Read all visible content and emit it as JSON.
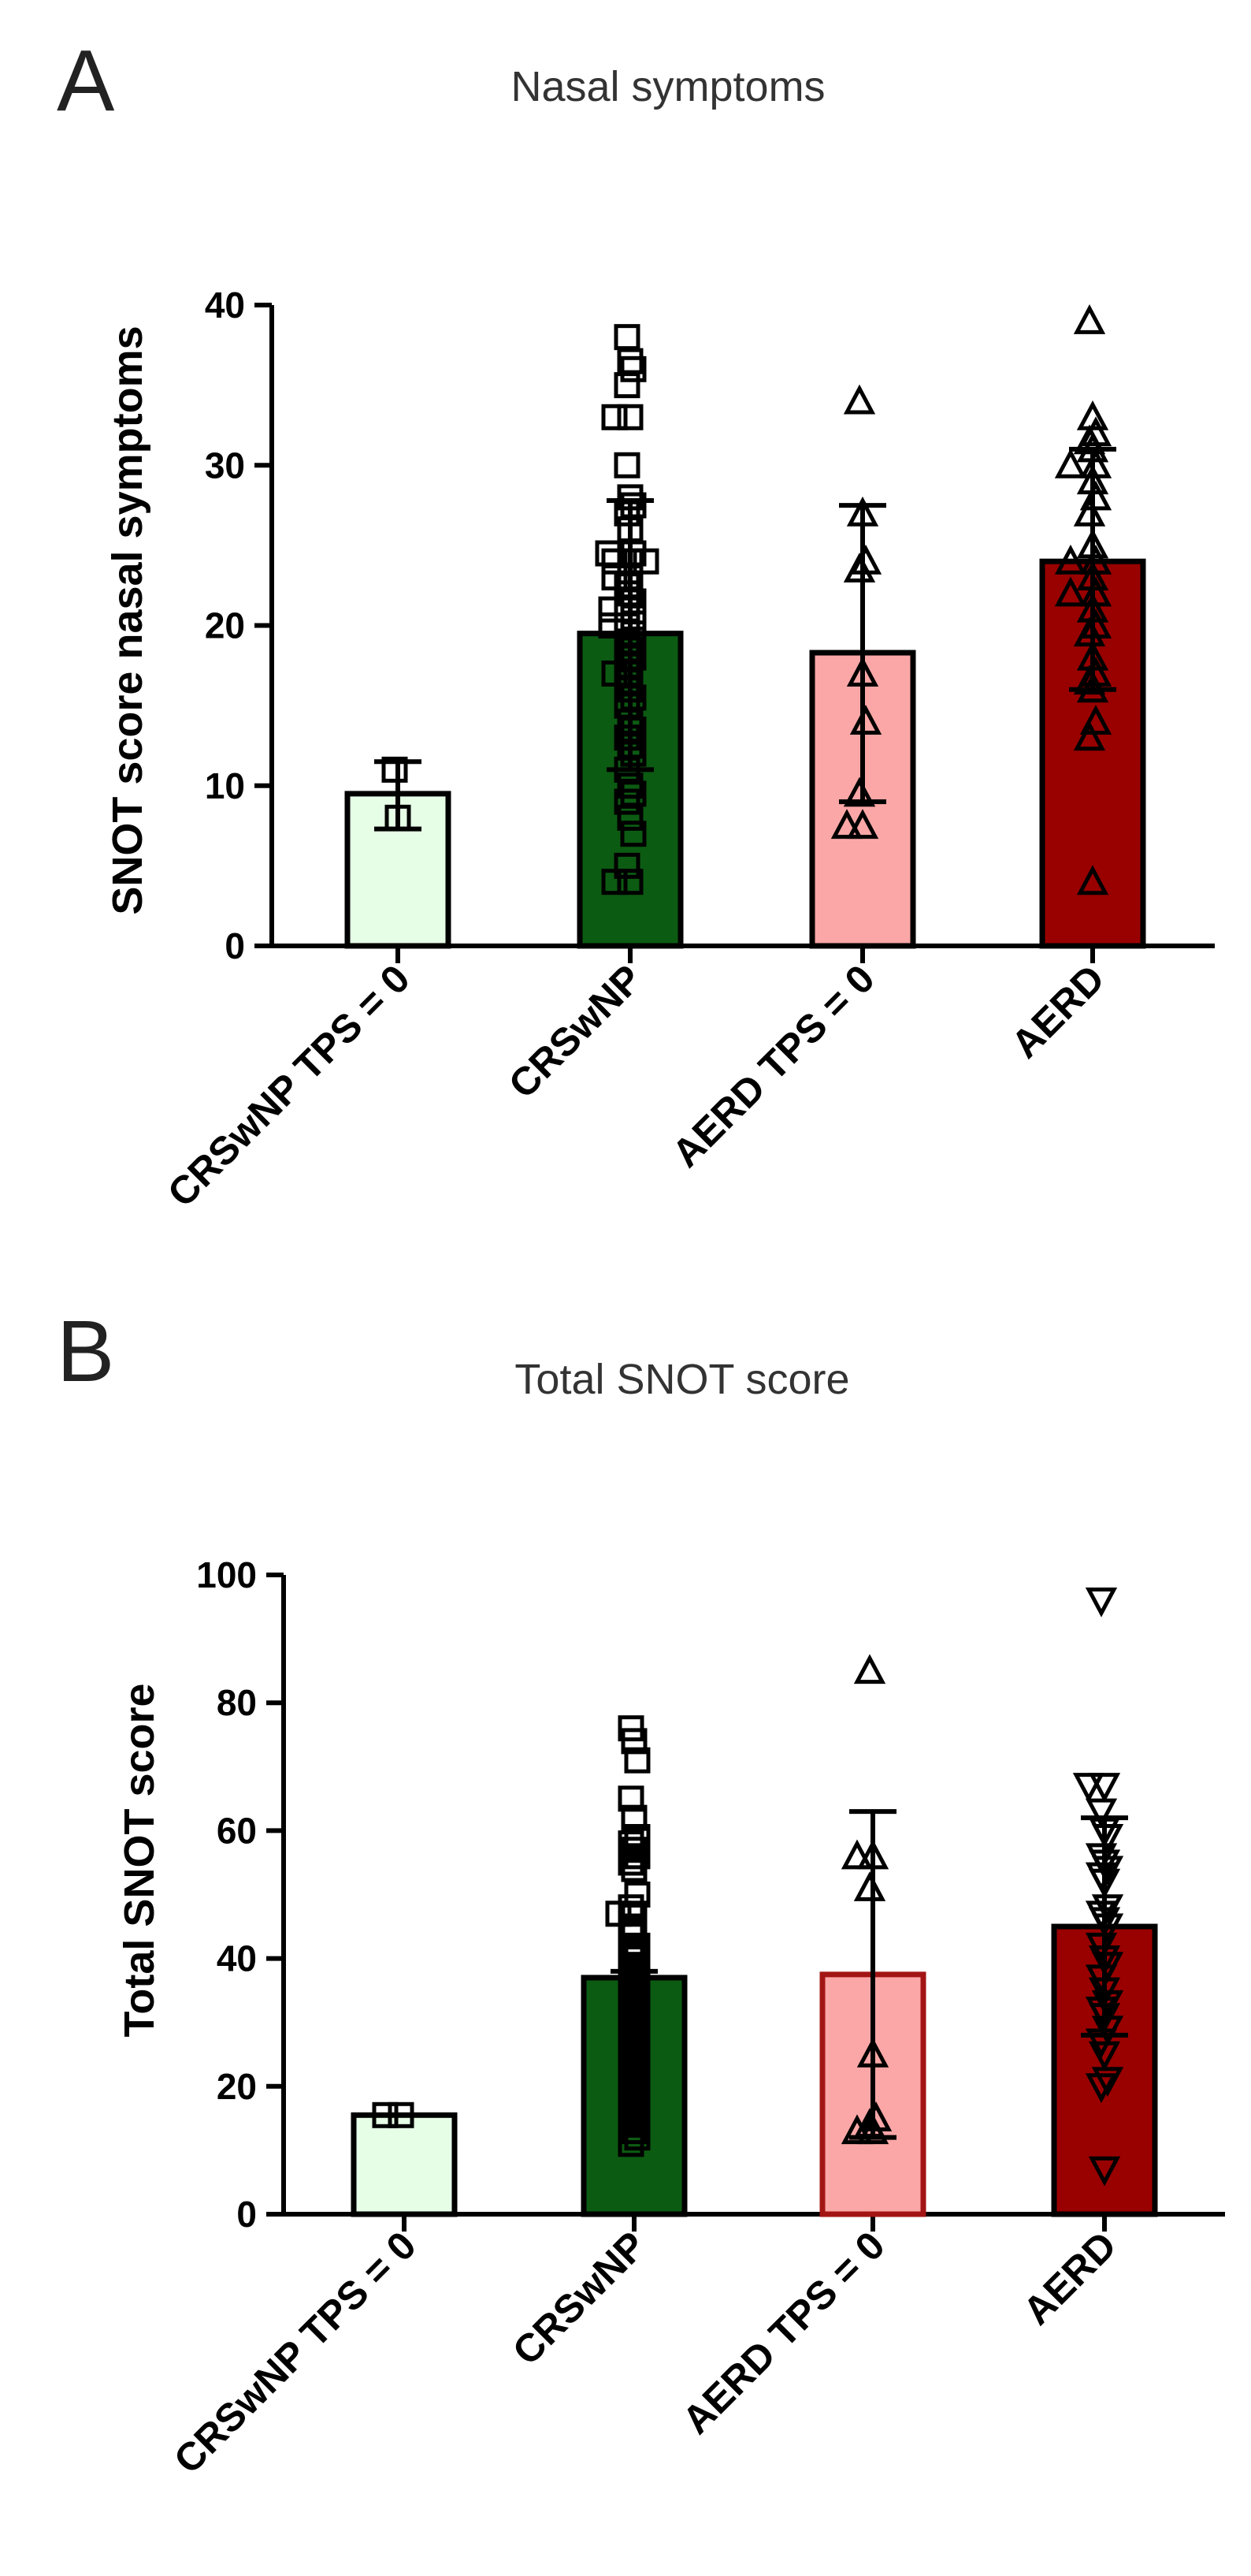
{
  "chart_data": [
    {
      "panel": "A",
      "type": "bar",
      "title": "Nasal symptoms",
      "xlabel": "",
      "ylabel": "SNOT score nasal symptoms",
      "ylim": [
        0,
        40
      ],
      "yticks": [
        "0",
        "10",
        "20",
        "30",
        "40"
      ],
      "categories": [
        "CRSwNP TPS = 0",
        "CRSwNP",
        "AERD TPS = 0",
        "AERD"
      ],
      "colors": [
        "#e6fde6",
        "#0c5b12",
        "#fca7a7",
        "#990000"
      ],
      "marker_shapes": [
        "square",
        "square",
        "triangle-up",
        "triangle-up"
      ],
      "means": [
        9.5,
        19.5,
        18.3,
        24
      ],
      "errors": [
        [
          7.3,
          11.5
        ],
        [
          11,
          27.8
        ],
        [
          9,
          27.5
        ],
        [
          16,
          31
        ]
      ],
      "points": [
        [
          11,
          8
        ],
        [
          38,
          36.5,
          36,
          35,
          33,
          33,
          30,
          28,
          27.5,
          27,
          26,
          24.5,
          24.5,
          24,
          24,
          24,
          23,
          23,
          22.5,
          22,
          21.5,
          21,
          21,
          20.5,
          20,
          20,
          19.5,
          19,
          18.5,
          18,
          17.5,
          17,
          17,
          16.5,
          16,
          15.5,
          15,
          14,
          13.5,
          13,
          12.5,
          12,
          11,
          10,
          9.5,
          9,
          8,
          7,
          5,
          4,
          4
        ],
        [
          34,
          27,
          24,
          23.5,
          17,
          14,
          9.5,
          7.5,
          7.5
        ],
        [
          39,
          33,
          32,
          31.5,
          31,
          30,
          30,
          29,
          28,
          27,
          25,
          24,
          24,
          23,
          22,
          22,
          21,
          20,
          19.5,
          18,
          17,
          16.5,
          16,
          14,
          13,
          4
        ]
      ]
    },
    {
      "panel": "B",
      "type": "bar",
      "title": "Total SNOT score",
      "xlabel": "",
      "ylabel": "Total SNOT score",
      "ylim": [
        0,
        100
      ],
      "yticks": [
        "0",
        "20",
        "40",
        "60",
        "80",
        "100"
      ],
      "categories": [
        "CRSwNP TPS = 0",
        "CRSwNP",
        "AERD TPS = 0",
        "AERD"
      ],
      "colors": [
        "#e6fde6",
        "#0c5b12",
        "#fca7a7",
        "#990000"
      ],
      "marker_shapes": [
        "square",
        "square",
        "triangle-up",
        "triangle-down"
      ],
      "means": [
        15.5,
        37,
        37.5,
        45
      ],
      "errors": [
        [
          15.5,
          15.5
        ],
        [
          37,
          38
        ],
        [
          12,
          63
        ],
        [
          28,
          62
        ]
      ],
      "points": [
        [
          15.5,
          15.5
        ],
        [
          76,
          74,
          71,
          65,
          62,
          59,
          58,
          57,
          56,
          55,
          54,
          50,
          48,
          47,
          47,
          45,
          44,
          42,
          41,
          40,
          39,
          38,
          37,
          36,
          35,
          34,
          33,
          32,
          31,
          30,
          29,
          28,
          27,
          26,
          25,
          24,
          23,
          22,
          21,
          20,
          19,
          18,
          17,
          16,
          15,
          14,
          13,
          12,
          11
        ],
        [
          85,
          56,
          56,
          51,
          25,
          15,
          14,
          13,
          13
        ],
        [
          96,
          67,
          67,
          63,
          60,
          59,
          56,
          55,
          54,
          53,
          52,
          48,
          47,
          46,
          45,
          42,
          40,
          39,
          37,
          35,
          33,
          32,
          31,
          29,
          27,
          25,
          21,
          20,
          7
        ]
      ]
    }
  ]
}
